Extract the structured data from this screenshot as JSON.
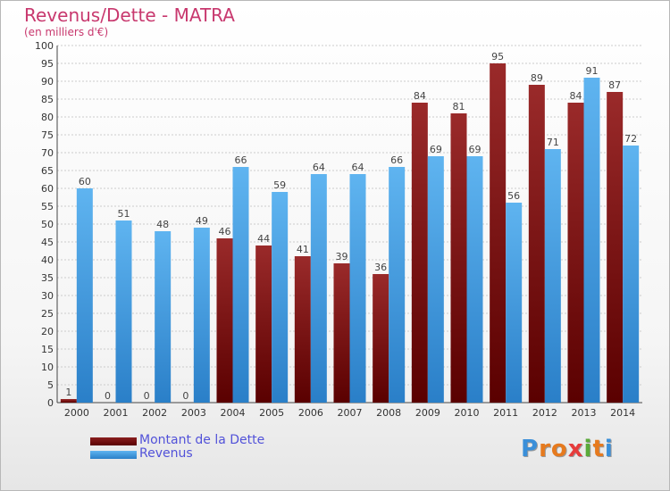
{
  "chart_data": {
    "type": "bar",
    "title": "Revenus/Dette - MATRA",
    "subtitle": "(en milliers d'€)",
    "categories": [
      "2000",
      "2001",
      "2002",
      "2003",
      "2004",
      "2005",
      "2006",
      "2007",
      "2008",
      "2009",
      "2010",
      "2011",
      "2012",
      "2013",
      "2014"
    ],
    "series": [
      {
        "name": "Montant de la Dette",
        "color": "#7a1414",
        "values": [
          1,
          0,
          0,
          0,
          46,
          44,
          41,
          39,
          36,
          84,
          81,
          95,
          89,
          84,
          87
        ]
      },
      {
        "name": "Revenus",
        "color": "#3d9de6",
        "values": [
          60,
          51,
          48,
          49,
          66,
          59,
          64,
          64,
          66,
          69,
          69,
          56,
          71,
          91,
          72
        ]
      }
    ],
    "ylim": [
      0,
      100
    ],
    "yticks": [
      0,
      5,
      10,
      15,
      20,
      25,
      30,
      35,
      40,
      45,
      50,
      55,
      60,
      65,
      70,
      75,
      80,
      85,
      90,
      95,
      100
    ],
    "grid": true,
    "legend_position": "bottom-left"
  },
  "logo": {
    "letters": [
      "P",
      "r",
      "o",
      "x",
      "i",
      "t",
      "i"
    ],
    "colors": [
      "#3a8fd9",
      "#e67a1e",
      "#e67a1e",
      "#e63c3c",
      "#5aaa3a",
      "#e67a1e",
      "#3a8fd9"
    ]
  }
}
